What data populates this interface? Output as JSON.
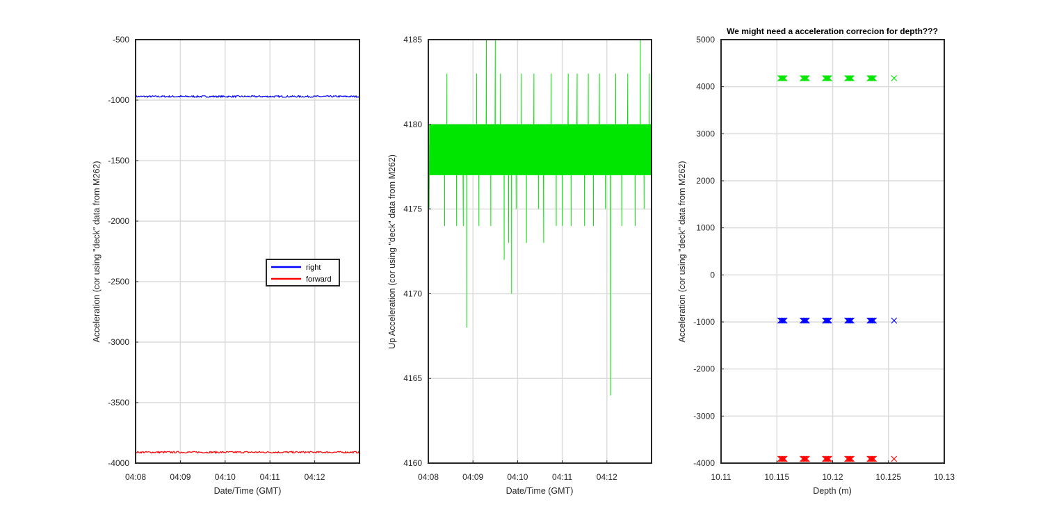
{
  "figure": {
    "background": "#ffffff"
  },
  "chart_data": [
    {
      "type": "line",
      "title": "",
      "xlabel": "Date/Time (GMT)",
      "ylabel": "Acceleration (cor using \"deck\" data from M262)",
      "x_ticks": [
        "04:08",
        "04:09",
        "04:10",
        "04:11",
        "04:12"
      ],
      "xlim": [
        "04:08",
        "04:13"
      ],
      "ylim": [
        -4000,
        -500
      ],
      "y_ticks": [
        -500,
        -1000,
        -1500,
        -2000,
        -2500,
        -3000,
        -3500,
        -4000
      ],
      "grid": true,
      "legend": {
        "placement": "center-right",
        "entries": [
          "right",
          "forward"
        ]
      },
      "series": [
        {
          "name": "right",
          "color": "#0000ff",
          "values_approx_constant": -970
        },
        {
          "name": "forward",
          "color": "#ff0000",
          "values_approx_constant": -3910
        }
      ]
    },
    {
      "type": "line",
      "title": "",
      "xlabel": "Date/Time (GMT)",
      "ylabel": "Up Acceleration (cor using \"deck\" data from M262)",
      "x_ticks": [
        "04:08",
        "04:09",
        "04:10",
        "04:11",
        "04:12"
      ],
      "xlim": [
        "04:08",
        "04:13"
      ],
      "ylim": [
        4160,
        4185
      ],
      "y_ticks": [
        4185,
        4180,
        4175,
        4170,
        4165,
        4160
      ],
      "grid": true,
      "series": [
        {
          "color": "#00e600",
          "levels": [
            4177,
            4180
          ],
          "spike_times": [
            "04:08:22",
            "04:08:25",
            "04:08:38",
            "04:08:42",
            "04:08:47",
            "04:08:52",
            "04:09:05",
            "04:09:08",
            "04:09:18",
            "04:09:24",
            "04:09:30",
            "04:09:37",
            "04:09:42",
            "04:09:48",
            "04:09:52",
            "04:09:58",
            "04:10:05",
            "04:10:12",
            "04:10:22",
            "04:10:28",
            "04:10:35",
            "04:10:45",
            "04:10:52",
            "04:11:00",
            "04:11:08",
            "04:11:12",
            "04:11:20",
            "04:11:30",
            "04:11:35",
            "04:11:42",
            "04:11:50",
            "04:11:58",
            "04:12:05",
            "04:12:12",
            "04:12:20",
            "04:12:28",
            "04:12:38",
            "04:12:45",
            "04:12:50",
            "04:12:57"
          ],
          "spike_values": [
            4174,
            4183,
            4174,
            4177,
            4174,
            4168,
            4183,
            4174,
            4185,
            4174,
            4185,
            4183,
            4172,
            4173,
            4170,
            4175,
            4183,
            4173,
            4183,
            4175,
            4173,
            4183,
            4174,
            4174,
            4183,
            4174,
            4183,
            4174,
            4183,
            4174,
            4183,
            4175,
            4164,
            4183,
            4174,
            4183,
            4174,
            4185,
            4175,
            4183
          ]
        }
      ]
    },
    {
      "type": "scatter",
      "title": "We might need a acceleration correcion for depth???",
      "xlabel": "Depth (m)",
      "ylabel": "Acceleration (cor using \"deck\" data from M262)",
      "xlim": [
        10.11,
        10.13
      ],
      "x_ticks": [
        "10.11",
        "10.115",
        "10.12",
        "10.125",
        "10.13"
      ],
      "ylim": [
        -4000,
        5000
      ],
      "y_ticks": [
        5000,
        4000,
        3000,
        2000,
        1000,
        0,
        -1000,
        -2000,
        -3000,
        -4000
      ],
      "grid": true,
      "marker": "x",
      "depths": [
        10.1155,
        10.1175,
        10.1195,
        10.1215,
        10.1235,
        10.1255
      ],
      "series": [
        {
          "color": "#00e600",
          "y": 4180
        },
        {
          "color": "#0000ff",
          "y": -970
        },
        {
          "color": "#ff0000",
          "y": -3910
        }
      ]
    }
  ]
}
